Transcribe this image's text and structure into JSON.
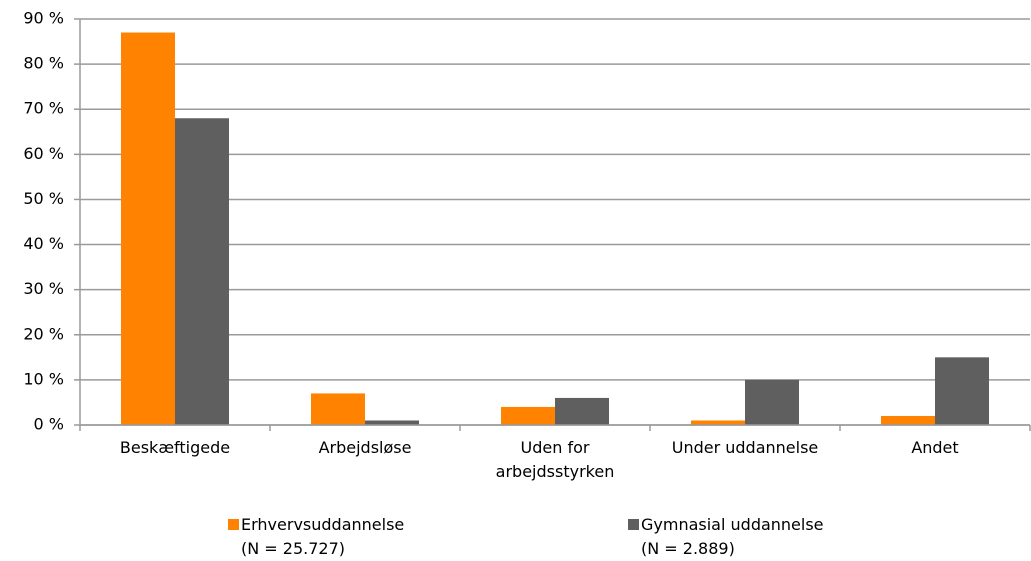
{
  "chart_data": {
    "type": "bar",
    "categories": [
      "Beskæftigede",
      "Arbejdsløse",
      "Uden for arbejdsstyrken",
      "Under uddannelse",
      "Andet"
    ],
    "series": [
      {
        "name": "Erhvervsuddannelse\n(N = 25.727)",
        "color": "#ff8200",
        "values": [
          87,
          7,
          4,
          1,
          2
        ]
      },
      {
        "name": "Gymnasial uddannelse\n(N = 2.889)",
        "color": "#5f5f5f",
        "values": [
          68,
          1,
          6,
          10,
          15
        ]
      }
    ],
    "ylim": [
      0,
      90
    ],
    "yticks": [
      {
        "value": 0,
        "label": "0 %"
      },
      {
        "value": 10,
        "label": "10 %"
      },
      {
        "value": 20,
        "label": "20 %"
      },
      {
        "value": 30,
        "label": "30 %"
      },
      {
        "value": 40,
        "label": "40 %"
      },
      {
        "value": 50,
        "label": "50 %"
      },
      {
        "value": 60,
        "label": "60 %"
      },
      {
        "value": 70,
        "label": "70 %"
      },
      {
        "value": 80,
        "label": "80 %"
      },
      {
        "value": 90,
        "label": "90 %"
      }
    ],
    "grid": true
  }
}
